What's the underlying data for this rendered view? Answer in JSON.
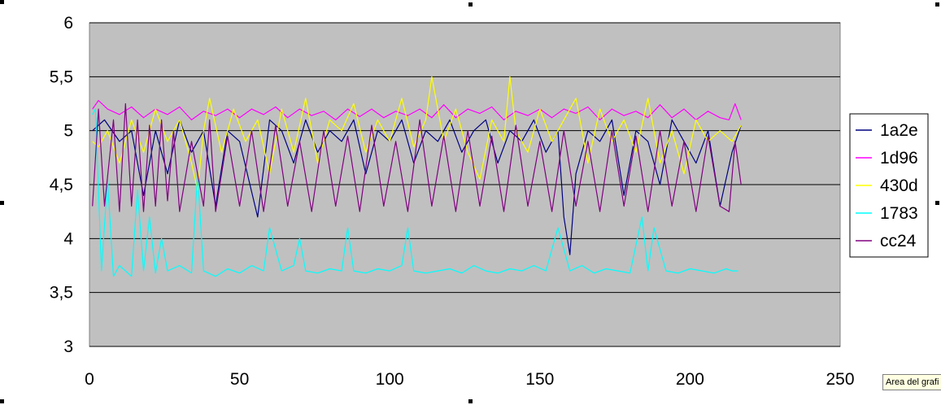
{
  "chart_data": {
    "type": "line",
    "xlim": [
      0,
      250
    ],
    "ylim": [
      3,
      6
    ],
    "x_ticks": [
      "0",
      "50",
      "100",
      "150",
      "200",
      "250"
    ],
    "y_ticks": [
      "3",
      "3,5",
      "4",
      "4,5",
      "5",
      "5,5",
      "6"
    ],
    "grid": true,
    "plot_background": "#c0c0c0",
    "legend_position": "right",
    "series": [
      {
        "name": "1a2e",
        "color": "#000080",
        "x": [
          1,
          5,
          10,
          14,
          18,
          22,
          26,
          30,
          34,
          38,
          42,
          46,
          50,
          56,
          60,
          64,
          68,
          72,
          76,
          80,
          84,
          88,
          92,
          96,
          100,
          104,
          108,
          112,
          116,
          120,
          124,
          128,
          132,
          136,
          140,
          144,
          148,
          152,
          156,
          158,
          160,
          162,
          166,
          170,
          174,
          178,
          182,
          186,
          190,
          194,
          198,
          202,
          206,
          210,
          214,
          217
        ],
        "values": [
          5.0,
          5.1,
          4.9,
          5.0,
          4.4,
          5.0,
          4.6,
          5.1,
          4.8,
          5.0,
          4.3,
          5.0,
          4.9,
          4.2,
          5.1,
          5.0,
          4.7,
          5.1,
          4.8,
          5.0,
          4.9,
          5.1,
          4.6,
          5.0,
          4.9,
          5.1,
          4.7,
          5.0,
          4.9,
          5.1,
          4.8,
          5.0,
          5.1,
          4.7,
          5.0,
          4.9,
          5.1,
          4.8,
          5.0,
          4.2,
          3.85,
          4.6,
          5.0,
          4.9,
          5.1,
          4.4,
          5.0,
          4.9,
          4.5,
          5.1,
          4.9,
          4.7,
          5.0,
          4.3,
          4.8,
          5.05
        ]
      },
      {
        "name": "1d96",
        "color": "#ff00ff",
        "x": [
          1,
          3,
          6,
          10,
          14,
          18,
          22,
          26,
          30,
          34,
          38,
          42,
          46,
          50,
          54,
          58,
          62,
          66,
          70,
          74,
          78,
          82,
          86,
          90,
          94,
          98,
          102,
          106,
          110,
          114,
          118,
          122,
          126,
          130,
          134,
          138,
          142,
          146,
          150,
          154,
          158,
          162,
          166,
          170,
          174,
          178,
          182,
          186,
          190,
          194,
          198,
          202,
          206,
          210,
          213,
          215,
          217
        ],
        "values": [
          5.2,
          5.28,
          5.2,
          5.15,
          5.22,
          5.12,
          5.2,
          5.15,
          5.22,
          5.1,
          5.18,
          5.14,
          5.2,
          5.12,
          5.2,
          5.15,
          5.22,
          5.12,
          5.2,
          5.14,
          5.18,
          5.1,
          5.2,
          5.13,
          5.2,
          5.12,
          5.18,
          5.14,
          5.2,
          5.12,
          5.24,
          5.12,
          5.2,
          5.16,
          5.22,
          5.1,
          5.18,
          5.14,
          5.2,
          5.12,
          5.2,
          5.16,
          5.22,
          5.1,
          5.2,
          5.14,
          5.18,
          5.12,
          5.24,
          5.12,
          5.2,
          5.1,
          5.18,
          5.12,
          5.1,
          5.25,
          5.1
        ]
      },
      {
        "name": "430d",
        "color": "#ffff00",
        "x": [
          1,
          3,
          6,
          10,
          14,
          18,
          22,
          26,
          30,
          34,
          36,
          38,
          40,
          44,
          48,
          52,
          56,
          60,
          64,
          68,
          72,
          76,
          80,
          84,
          88,
          92,
          96,
          100,
          104,
          108,
          112,
          114,
          118,
          122,
          126,
          130,
          134,
          138,
          140,
          142,
          146,
          150,
          154,
          158,
          162,
          166,
          170,
          174,
          178,
          182,
          186,
          190,
          194,
          198,
          202,
          206,
          210,
          214,
          217
        ],
        "values": [
          4.9,
          4.85,
          5.0,
          4.7,
          5.1,
          4.8,
          5.2,
          4.9,
          5.1,
          4.7,
          4.45,
          5.0,
          5.3,
          4.8,
          5.2,
          4.9,
          5.1,
          4.6,
          5.2,
          4.8,
          5.3,
          4.7,
          5.1,
          5.0,
          5.25,
          4.8,
          5.1,
          4.9,
          5.3,
          4.85,
          5.1,
          5.5,
          4.9,
          5.2,
          4.8,
          4.55,
          5.1,
          4.9,
          5.5,
          5.0,
          4.8,
          5.2,
          4.9,
          5.1,
          5.3,
          4.7,
          5.2,
          4.9,
          5.1,
          4.8,
          5.3,
          4.7,
          5.0,
          4.6,
          5.1,
          4.9,
          5.0,
          4.9,
          5.05
        ]
      },
      {
        "name": "1783",
        "color": "#00ffff",
        "x": [
          1,
          2,
          4,
          6,
          8,
          10,
          14,
          16,
          18,
          20,
          22,
          24,
          26,
          30,
          34,
          36,
          38,
          42,
          46,
          50,
          54,
          58,
          60,
          64,
          68,
          70,
          72,
          76,
          80,
          84,
          86,
          88,
          92,
          96,
          100,
          104,
          106,
          108,
          112,
          116,
          120,
          124,
          128,
          132,
          136,
          140,
          144,
          148,
          152,
          156,
          160,
          164,
          168,
          172,
          176,
          180,
          184,
          186,
          188,
          192,
          196,
          200,
          204,
          208,
          212,
          214,
          216
        ],
        "values": [
          5.15,
          5.2,
          3.7,
          4.55,
          3.65,
          3.75,
          3.65,
          4.45,
          3.7,
          4.2,
          3.68,
          4.0,
          3.7,
          3.75,
          3.68,
          4.6,
          3.7,
          3.65,
          3.72,
          3.68,
          3.75,
          3.7,
          4.1,
          3.7,
          3.75,
          4.0,
          3.7,
          3.68,
          3.72,
          3.7,
          4.1,
          3.7,
          3.68,
          3.72,
          3.7,
          3.75,
          4.1,
          3.7,
          3.68,
          3.7,
          3.72,
          3.68,
          3.75,
          3.7,
          3.68,
          3.72,
          3.7,
          3.75,
          3.7,
          4.1,
          3.7,
          3.75,
          3.68,
          3.72,
          3.7,
          3.68,
          4.2,
          3.7,
          4.1,
          3.7,
          3.68,
          3.72,
          3.7,
          3.68,
          3.72,
          3.7,
          3.7
        ]
      },
      {
        "name": "cc24",
        "color": "#800080",
        "x": [
          1,
          3,
          5,
          8,
          10,
          12,
          14,
          16,
          18,
          20,
          22,
          24,
          26,
          28,
          30,
          34,
          38,
          40,
          42,
          46,
          50,
          54,
          58,
          62,
          66,
          70,
          74,
          78,
          82,
          86,
          90,
          94,
          98,
          102,
          106,
          110,
          114,
          118,
          122,
          126,
          130,
          134,
          138,
          142,
          146,
          150,
          154,
          158,
          162,
          166,
          170,
          174,
          178,
          182,
          186,
          190,
          194,
          198,
          202,
          206,
          210,
          213,
          215,
          217
        ],
        "values": [
          4.3,
          5.2,
          4.3,
          5.1,
          4.25,
          5.25,
          4.3,
          5.1,
          4.25,
          5.05,
          4.3,
          5.1,
          4.35,
          5.0,
          4.25,
          4.9,
          4.3,
          5.1,
          4.25,
          4.95,
          4.3,
          5.0,
          4.25,
          5.05,
          4.3,
          4.9,
          4.25,
          5.0,
          4.3,
          4.95,
          4.25,
          5.05,
          4.3,
          4.9,
          4.25,
          5.1,
          4.3,
          4.95,
          4.25,
          5.0,
          4.3,
          4.95,
          4.25,
          5.05,
          4.3,
          4.9,
          4.25,
          5.0,
          4.3,
          4.9,
          4.25,
          5.0,
          4.3,
          4.95,
          4.25,
          5.0,
          4.3,
          4.9,
          4.25,
          4.95,
          4.3,
          4.25,
          4.9,
          4.5
        ]
      }
    ]
  },
  "tooltip": {
    "text": "Area del grafi"
  }
}
